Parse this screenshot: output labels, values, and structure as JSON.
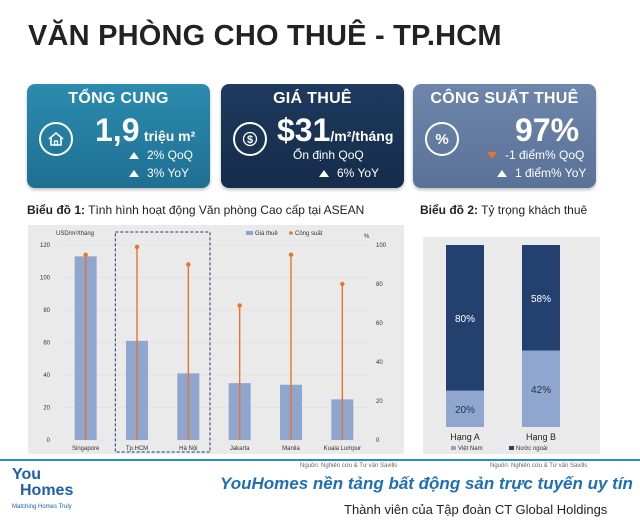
{
  "title": "VĂN PHÒNG CHO THUÊ - TP.HCM",
  "cards": [
    {
      "title": "TỔNG CUNG",
      "icon": "house-icon",
      "value": "1,9",
      "unit": "triệu m²",
      "stats": [
        "2% QoQ",
        "3% YoY"
      ]
    },
    {
      "title": "GIÁ THUÊ",
      "icon": "dollar-coin-icon",
      "value": "$31",
      "unit": "/m²/tháng",
      "stats": [
        "Ổn định QoQ",
        "6% YoY"
      ]
    },
    {
      "title": "CÔNG SUẤT THUÊ",
      "icon": "percent-icon",
      "value": "97%",
      "unit": "",
      "stats": [
        "-1 điểm% QoQ",
        "1 điểm% YoY"
      ]
    }
  ],
  "chart1_heading": {
    "bold": "Biểu đồ 1:",
    "text": " Tình hình hoạt động Văn phòng Cao cấp tại ASEAN"
  },
  "chart2_heading": {
    "bold": "Biểu đồ 2:",
    "text": " Tỷ trọng khách thuê"
  },
  "chart1_source": "Nguồn: Nghiên cứu & Tư vấn Savills",
  "chart2_source": "Nguồn: Nghiên cứu & Tư vấn Savills",
  "footer": {
    "logo_you": "You",
    "logo_homes": "Homes",
    "logo_sub": "Matching Homes Truly",
    "tagline": "YouHomes nền tảng bất động sản trực tuyến uy tín",
    "subtagline": "Thành viên của Tập đoàn CT Global Holdings"
  },
  "colors": {
    "bar": "#8fa7cf",
    "line": "#e8732a",
    "dark": "#24406e",
    "light": "#8fa7cf"
  },
  "chart_data": [
    {
      "type": "bar",
      "categories": [
        "Singapore",
        "Tp.HCM",
        "Hà Nội",
        "Jakarta",
        "Manila",
        "Kuala Lumpur"
      ],
      "ylabel": "USD/m²/tháng",
      "y2label": "%",
      "ylim": [
        0,
        120
      ],
      "y2lim": [
        0,
        100
      ],
      "yticks": [
        0,
        20,
        40,
        60,
        80,
        100,
        120
      ],
      "y2ticks": [
        0,
        20,
        40,
        60,
        80,
        100
      ],
      "legend": "top-right",
      "series": [
        {
          "name": "Giá thuê",
          "kind": "bar",
          "axis": "left",
          "values": [
            113,
            61,
            41,
            35,
            34,
            25
          ]
        },
        {
          "name": "Công suất",
          "kind": "lollipop",
          "axis": "right",
          "values": [
            95,
            99,
            90,
            69,
            95,
            80
          ]
        }
      ],
      "highlight": [
        "Tp.HCM",
        "Hà Nội"
      ]
    },
    {
      "type": "bar",
      "stacked": true,
      "categories": [
        "Hạng A",
        "Hạng B"
      ],
      "ylim": [
        0,
        100
      ],
      "legend": "bottom",
      "series": [
        {
          "name": "Việt Nam",
          "values": [
            20,
            42
          ],
          "labels": [
            "20%",
            "42%"
          ]
        },
        {
          "name": "Nước ngoài",
          "values": [
            80,
            58
          ],
          "labels": [
            "80%",
            "58%"
          ]
        }
      ]
    }
  ]
}
